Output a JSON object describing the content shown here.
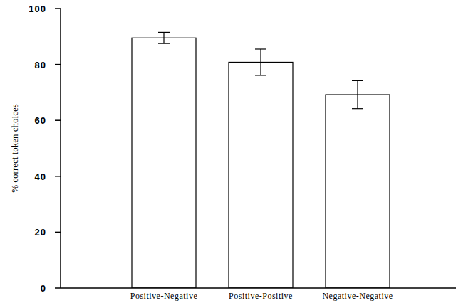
{
  "chart_data": {
    "type": "bar",
    "y_label": "% correct token choices",
    "categories": [
      "Positive-Negative",
      "Positive-Positive",
      "Negative-Negative"
    ],
    "values": [
      89.5,
      80.8,
      69.2
    ],
    "errors": [
      2,
      4.7,
      5
    ],
    "color": "#ffffff",
    "ylim": [
      0,
      100
    ],
    "yticks": [
      0,
      20,
      40,
      60,
      80,
      100
    ],
    "grid": false
  }
}
